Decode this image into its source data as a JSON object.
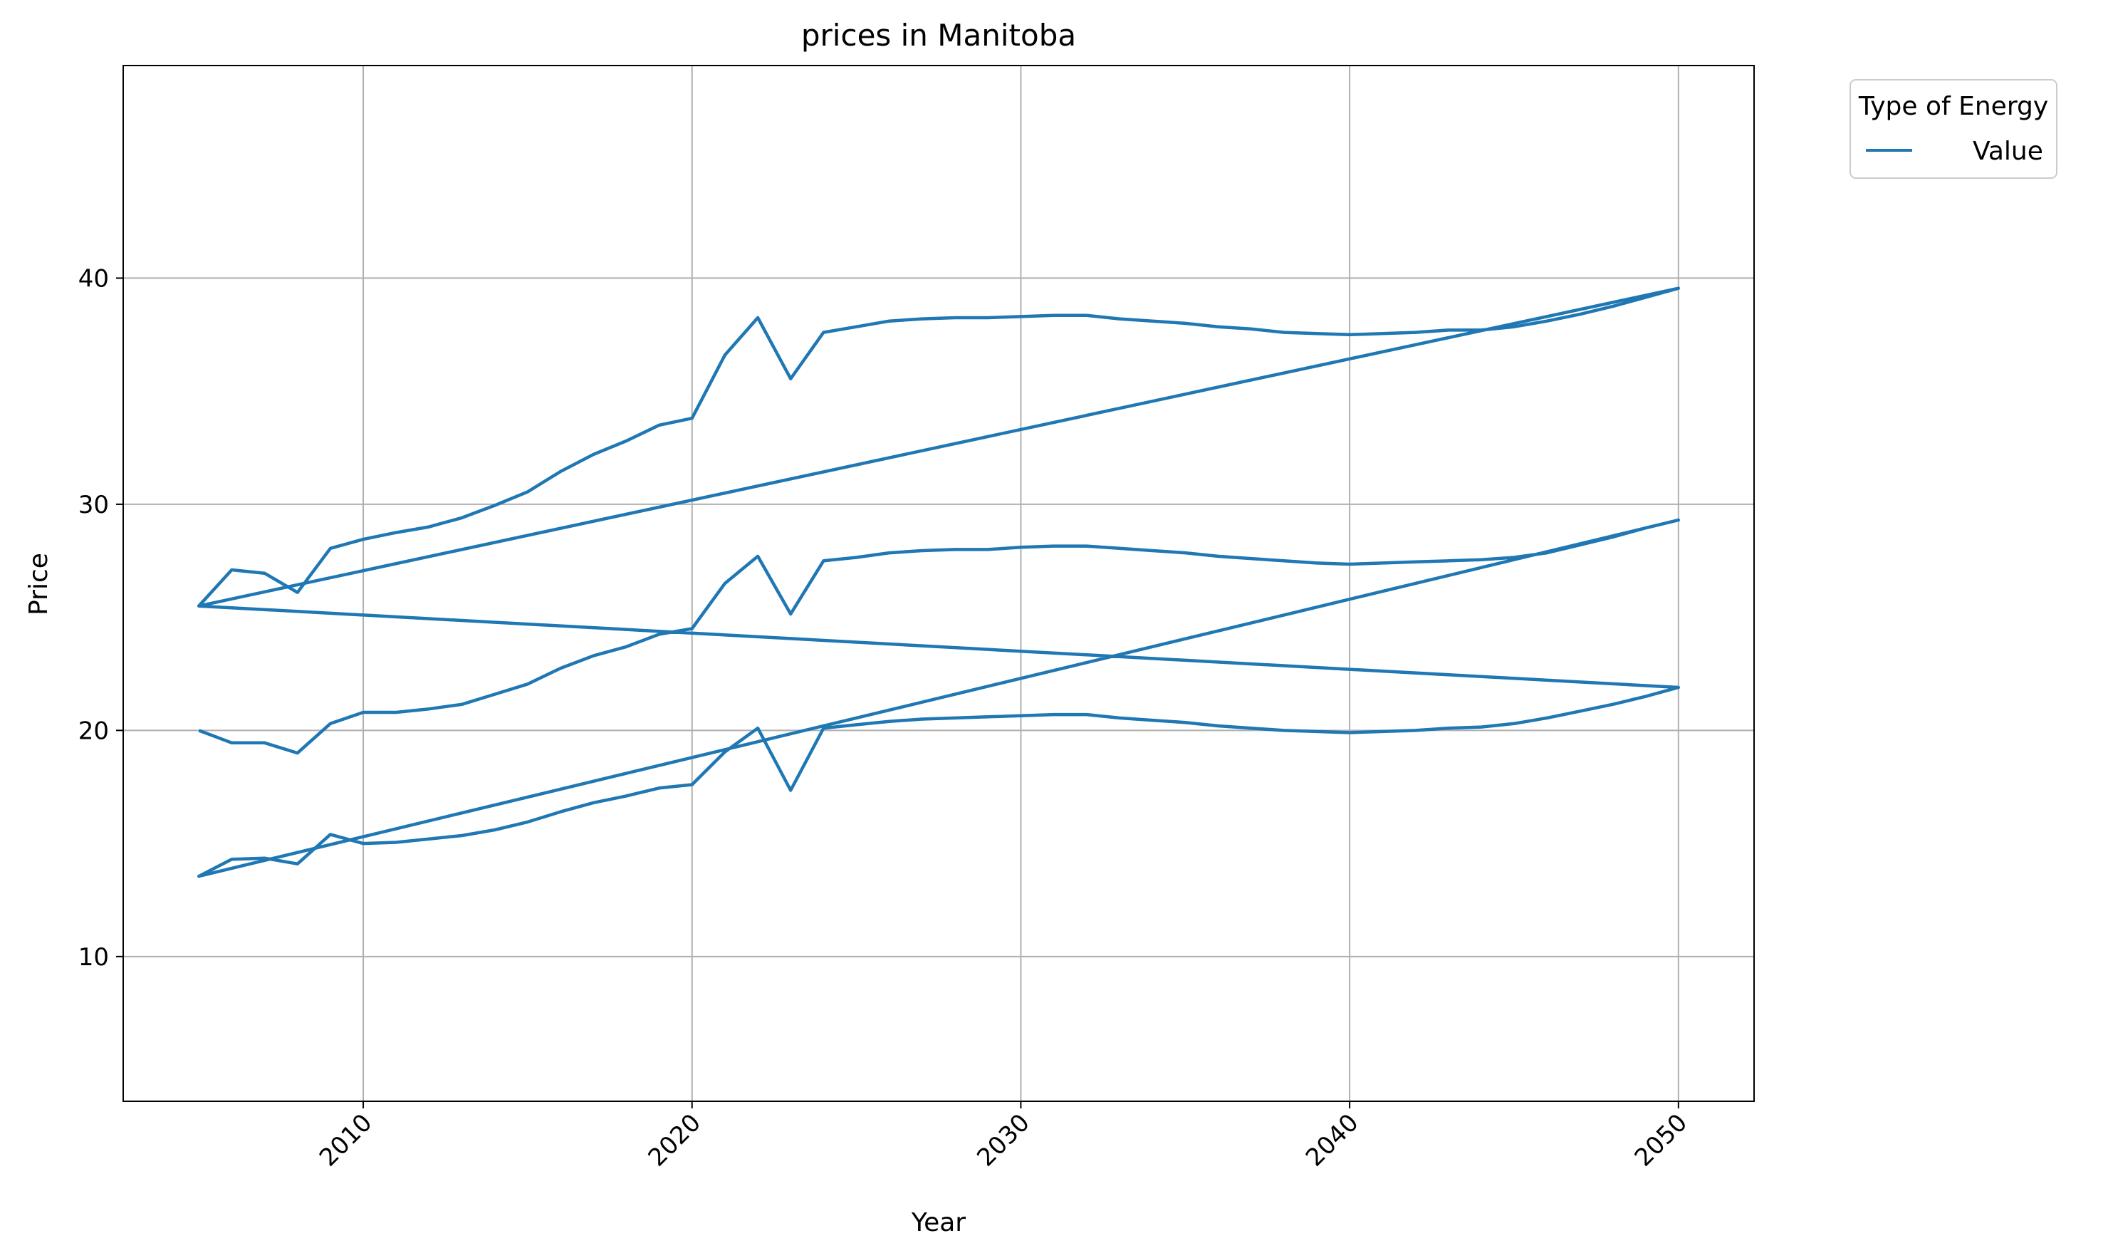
{
  "chart_data": {
    "type": "line",
    "title": "prices in Manitoba",
    "xlabel": "Year",
    "ylabel": "Price",
    "xlim": [
      2002.7,
      2052.3
    ],
    "ylim": [
      3.6,
      49.4
    ],
    "xticks": [
      2010,
      2020,
      2030,
      2040,
      2050
    ],
    "yticks": [
      10,
      20,
      30,
      40
    ],
    "grid": true,
    "legend": {
      "title": "Type of Energy",
      "position": "outside-top-right",
      "entries": [
        "Value"
      ]
    },
    "line_color": "#1f77b4",
    "series": [
      {
        "name": "Value",
        "points": [
          [
            2005,
            25.5
          ],
          [
            2006,
            27.1
          ],
          [
            2007,
            26.95
          ],
          [
            2008,
            26.1
          ],
          [
            2009,
            28.05
          ],
          [
            2010,
            28.45
          ],
          [
            2011,
            28.75
          ],
          [
            2012,
            29.0
          ],
          [
            2013,
            29.4
          ],
          [
            2014,
            29.95
          ],
          [
            2015,
            30.55
          ],
          [
            2016,
            31.45
          ],
          [
            2017,
            32.2
          ],
          [
            2018,
            32.8
          ],
          [
            2019,
            33.5
          ],
          [
            2020,
            33.8
          ],
          [
            2021,
            36.6
          ],
          [
            2022,
            38.25
          ],
          [
            2023,
            35.55
          ],
          [
            2024,
            37.6
          ],
          [
            2025,
            37.85
          ],
          [
            2026,
            38.1
          ],
          [
            2027,
            38.2
          ],
          [
            2028,
            38.25
          ],
          [
            2029,
            38.25
          ],
          [
            2030,
            38.3
          ],
          [
            2031,
            38.35
          ],
          [
            2032,
            38.35
          ],
          [
            2033,
            38.2
          ],
          [
            2034,
            38.1
          ],
          [
            2035,
            38.0
          ],
          [
            2036,
            37.85
          ],
          [
            2037,
            37.75
          ],
          [
            2038,
            37.6
          ],
          [
            2039,
            37.55
          ],
          [
            2040,
            37.5
          ],
          [
            2041,
            37.55
          ],
          [
            2042,
            37.6
          ],
          [
            2043,
            37.7
          ],
          [
            2044,
            37.7
          ],
          [
            2045,
            37.85
          ],
          [
            2046,
            38.1
          ],
          [
            2047,
            38.4
          ],
          [
            2048,
            38.75
          ],
          [
            2049,
            39.15
          ],
          [
            2050,
            39.55
          ],
          [
            2005,
            25.5
          ],
          [
            2050,
            21.9
          ],
          [
            2049,
            21.5
          ],
          [
            2048,
            21.15
          ],
          [
            2047,
            20.85
          ],
          [
            2046,
            20.55
          ],
          [
            2045,
            20.3
          ],
          [
            2044,
            20.15
          ],
          [
            2043,
            20.1
          ],
          [
            2042,
            20.0
          ],
          [
            2041,
            19.95
          ],
          [
            2040,
            19.9
          ],
          [
            2039,
            19.95
          ],
          [
            2038,
            20.0
          ],
          [
            2037,
            20.1
          ],
          [
            2036,
            20.2
          ],
          [
            2035,
            20.35
          ],
          [
            2034,
            20.45
          ],
          [
            2033,
            20.55
          ],
          [
            2032,
            20.7
          ],
          [
            2031,
            20.7
          ],
          [
            2030,
            20.65
          ],
          [
            2029,
            20.6
          ],
          [
            2028,
            20.55
          ],
          [
            2027,
            20.5
          ],
          [
            2026,
            20.4
          ],
          [
            2025,
            20.25
          ],
          [
            2024,
            20.1
          ],
          [
            2023,
            17.35
          ],
          [
            2022,
            20.1
          ],
          [
            2021,
            19.05
          ],
          [
            2020,
            17.6
          ],
          [
            2019,
            17.45
          ],
          [
            2018,
            17.1
          ],
          [
            2017,
            16.8
          ],
          [
            2016,
            16.4
          ],
          [
            2015,
            15.95
          ],
          [
            2014,
            15.6
          ],
          [
            2013,
            15.35
          ],
          [
            2012,
            15.2
          ],
          [
            2011,
            15.05
          ],
          [
            2010,
            15.0
          ],
          [
            2009,
            15.4
          ],
          [
            2008,
            14.1
          ],
          [
            2007,
            14.35
          ],
          [
            2006,
            14.3
          ],
          [
            2005,
            13.55
          ],
          [
            2050,
            29.3
          ],
          [
            2049,
            28.95
          ],
          [
            2048,
            28.55
          ],
          [
            2047,
            28.2
          ],
          [
            2046,
            27.85
          ],
          [
            2045,
            27.65
          ],
          [
            2044,
            27.55
          ],
          [
            2043,
            27.5
          ],
          [
            2042,
            27.45
          ],
          [
            2041,
            27.4
          ],
          [
            2040,
            27.35
          ],
          [
            2039,
            27.4
          ],
          [
            2038,
            27.5
          ],
          [
            2037,
            27.6
          ],
          [
            2036,
            27.7
          ],
          [
            2035,
            27.85
          ],
          [
            2034,
            27.95
          ],
          [
            2033,
            28.05
          ],
          [
            2032,
            28.15
          ],
          [
            2031,
            28.15
          ],
          [
            2030,
            28.1
          ],
          [
            2029,
            28.0
          ],
          [
            2028,
            28.0
          ],
          [
            2027,
            27.95
          ],
          [
            2026,
            27.85
          ],
          [
            2025,
            27.65
          ],
          [
            2024,
            27.5
          ],
          [
            2023,
            25.15
          ],
          [
            2022,
            27.7
          ],
          [
            2021,
            26.5
          ],
          [
            2020,
            24.5
          ],
          [
            2019,
            24.25
          ],
          [
            2018,
            23.7
          ],
          [
            2017,
            23.3
          ],
          [
            2016,
            22.75
          ],
          [
            2015,
            22.05
          ],
          [
            2014,
            21.6
          ],
          [
            2013,
            21.15
          ],
          [
            2012,
            20.95
          ],
          [
            2011,
            20.8
          ],
          [
            2010,
            20.8
          ],
          [
            2009,
            20.3
          ],
          [
            2008,
            19.0
          ],
          [
            2007,
            19.45
          ],
          [
            2006,
            19.45
          ],
          [
            2005,
            20.0
          ]
        ]
      }
    ]
  }
}
